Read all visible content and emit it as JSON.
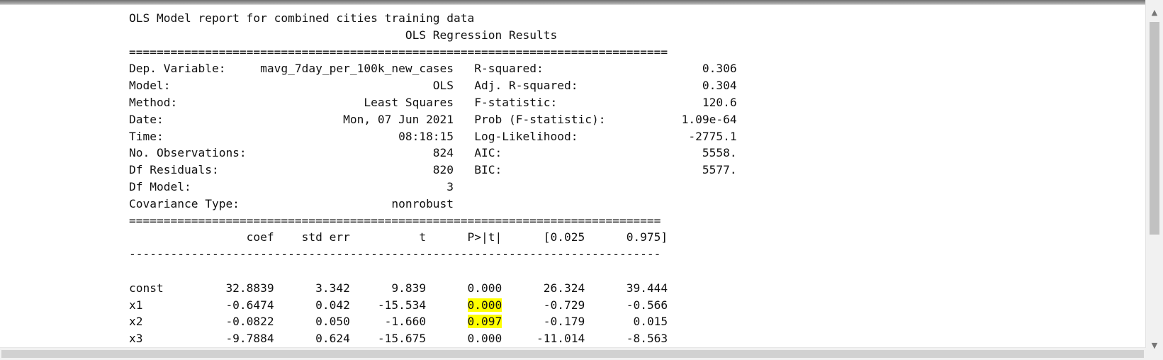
{
  "report": {
    "title": "OLS Model report for combined cities training data",
    "heading": "                                        OLS Regression Results                            ",
    "sep_long": "==============================================================================",
    "sep_medium": "=============================================================================",
    "sep_dash": "-----------------------------------------------------------------------------",
    "summary_rows": [
      "Dep. Variable:     mavg_7day_per_100k_new_cases   R-squared:                       0.306",
      "Model:                                      OLS   Adj. R-squared:                  0.304",
      "Method:                           Least Squares   F-statistic:                     120.6",
      "Date:                          Mon, 07 Jun 2021   Prob (F-statistic):           1.09e-64",
      "Time:                                  08:18:15   Log-Likelihood:                -2775.1",
      "No. Observations:                           824   AIC:                             5558.",
      "Df Residuals:                               820   BIC:                             5577.",
      "Df Model:                                     3                                         ",
      "Covariance Type:                      nonrobust                                         "
    ],
    "coef_header": "                 coef    std err          t      P>|t|      [0.025      0.975]",
    "coef_rows": [
      {
        "pre": "const         32.8839      3.342      9.839      ",
        "p": "0.000",
        "post": "      26.324      39.444",
        "highlight": false
      },
      {
        "pre": "x1            -0.6474      0.042    -15.534      ",
        "p": "0.000",
        "post": "      -0.729      -0.566",
        "highlight": true
      },
      {
        "pre": "x2            -0.0822      0.050     -1.660      ",
        "p": "0.097",
        "post": "      -0.179       0.015",
        "highlight": true
      },
      {
        "pre": "x3            -9.7884      0.624    -15.675      ",
        "p": "0.000",
        "post": "     -11.014      -8.563",
        "highlight": false
      }
    ],
    "highlight_color": "#ffff00"
  },
  "icons": {
    "scroll_up": "scroll-up-arrow-icon",
    "scroll_down": "scroll-down-arrow-icon"
  }
}
